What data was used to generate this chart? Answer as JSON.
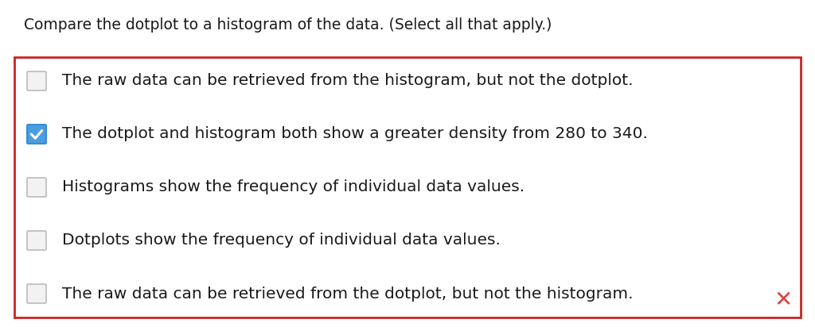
{
  "question": "Compare the dotplot to a histogram of the data. (Select all that apply.)",
  "options": [
    "The raw data can be retrieved from the histogram, but not the dotplot.",
    "The dotplot and histogram both show a greater density from 280 to 340.",
    "Histograms show the frequency of individual data values.",
    "Dotplots show the frequency of individual data values.",
    "The raw data can be retrieved from the dotplot, but not the histogram."
  ],
  "checked": [
    false,
    true,
    false,
    false,
    false
  ],
  "background_color": "#ffffff",
  "border_color": "#cc2222",
  "question_font_size": 13.5,
  "option_font_size": 14.5,
  "text_color": "#1a1a1a",
  "checkbox_checked_fill": "#4a9de0",
  "checkbox_checked_edge": "#3a8cd0",
  "checkbox_unchecked_fill": "#f2f2f2",
  "checkbox_unchecked_edge": "#bbbbbb",
  "x_mark_color": "#dd4444",
  "fig_width": 10.24,
  "fig_height": 4.12
}
